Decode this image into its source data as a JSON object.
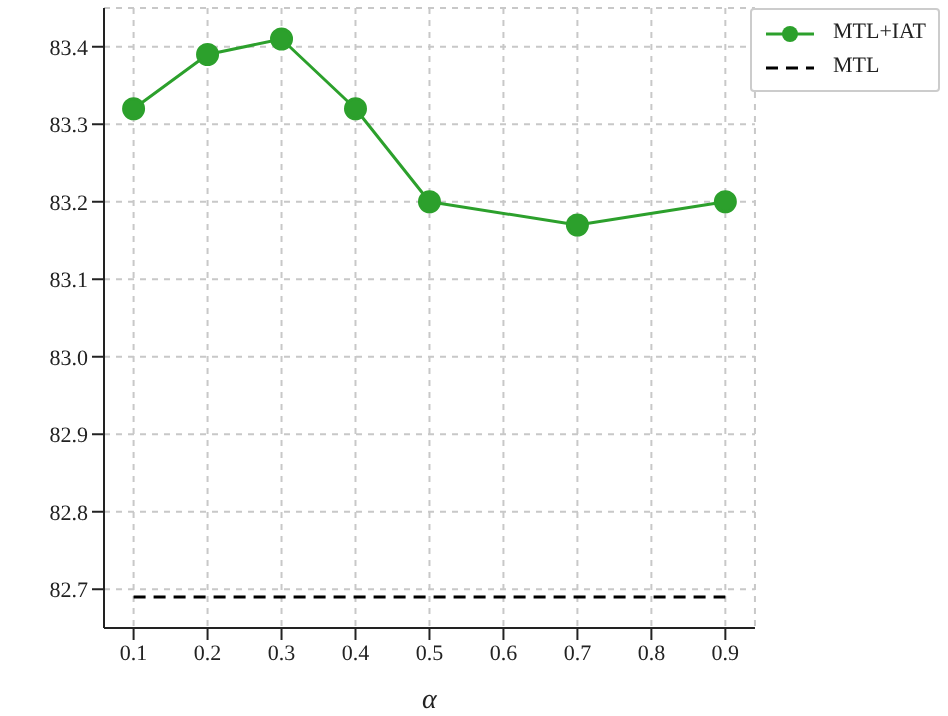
{
  "chart_data": {
    "type": "line",
    "xlabel": "α",
    "x": [
      0.1,
      0.2,
      0.3,
      0.4,
      0.5,
      0.7,
      0.9
    ],
    "series": [
      {
        "name": "MTL+IAT",
        "color": "#2ca02c",
        "values": [
          83.32,
          83.39,
          83.41,
          83.32,
          83.2,
          83.17,
          83.2
        ],
        "marker": "circle",
        "line_style": "solid"
      },
      {
        "name": "MTL",
        "color": "#000000",
        "x": [
          0.1,
          0.9
        ],
        "values": [
          82.69,
          82.69
        ],
        "marker": "none",
        "line_style": "dashed"
      }
    ],
    "xlim": [
      0.06,
      0.94
    ],
    "xticks": [
      0.1,
      0.2,
      0.3,
      0.4,
      0.5,
      0.6,
      0.7,
      0.8,
      0.9
    ],
    "ylim": [
      82.65,
      83.45
    ],
    "yticks": [
      82.7,
      82.8,
      82.9,
      {
        "value": 83,
        "label": "83.0"
      },
      83.1,
      83.2,
      83.3,
      83.4
    ],
    "grid": true,
    "legend": "top right"
  }
}
